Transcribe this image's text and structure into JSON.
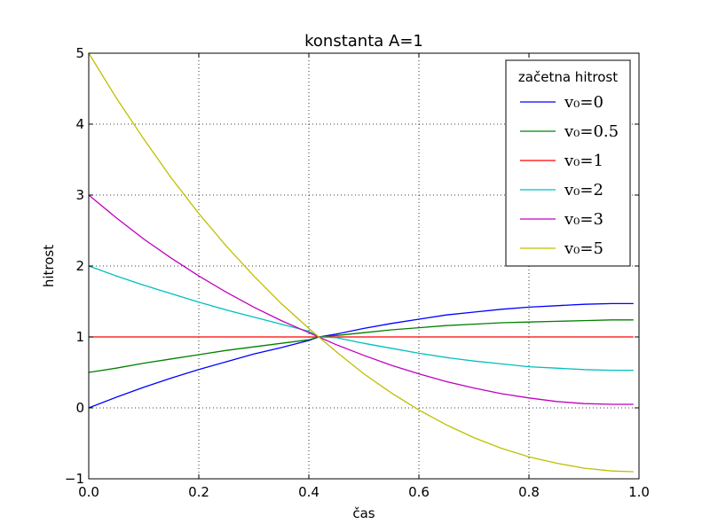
{
  "chart_data": {
    "type": "line",
    "title": "konstanta A=1",
    "xlabel": "čas",
    "ylabel": "hitrost",
    "xlim": [
      0.0,
      1.0
    ],
    "ylim": [
      -1,
      5
    ],
    "xticks": [
      "0.0",
      "0.2",
      "0.4",
      "0.6",
      "0.8",
      "1.0"
    ],
    "yticks": [
      "−1",
      "0",
      "1",
      "2",
      "3",
      "4",
      "5"
    ],
    "grid": true,
    "legend": {
      "title": "začetna hitrost",
      "position": "upper right"
    },
    "x": [
      0.0,
      0.05,
      0.1,
      0.15,
      0.2,
      0.25,
      0.3,
      0.35,
      0.4,
      0.418,
      0.45,
      0.5,
      0.55,
      0.6,
      0.65,
      0.7,
      0.75,
      0.8,
      0.85,
      0.9,
      0.95,
      0.99
    ],
    "series": [
      {
        "name": "v₀=0",
        "color": "#0000ff",
        "values": [
          0.0,
          0.15,
          0.29,
          0.42,
          0.54,
          0.65,
          0.76,
          0.85,
          0.95,
          1.0,
          1.04,
          1.12,
          1.19,
          1.25,
          1.31,
          1.35,
          1.39,
          1.42,
          1.44,
          1.46,
          1.47,
          1.47
        ]
      },
      {
        "name": "v₀=0.5",
        "color": "#008000",
        "values": [
          0.5,
          0.56,
          0.63,
          0.69,
          0.75,
          0.81,
          0.86,
          0.91,
          0.96,
          1.0,
          1.02,
          1.06,
          1.1,
          1.13,
          1.16,
          1.18,
          1.2,
          1.21,
          1.22,
          1.23,
          1.24,
          1.24
        ]
      },
      {
        "name": "v₀=1",
        "color": "#ff0000",
        "values": [
          1.0,
          1.0,
          1.0,
          1.0,
          1.0,
          1.0,
          1.0,
          1.0,
          1.0,
          1.0,
          1.0,
          1.0,
          1.0,
          1.0,
          1.0,
          1.0,
          1.0,
          1.0,
          1.0,
          1.0,
          1.0,
          1.0
        ]
      },
      {
        "name": "v₀=2",
        "color": "#00bfbf",
        "values": [
          2.0,
          1.86,
          1.73,
          1.61,
          1.49,
          1.38,
          1.28,
          1.18,
          1.08,
          1.0,
          0.99,
          0.91,
          0.84,
          0.77,
          0.71,
          0.66,
          0.62,
          0.58,
          0.56,
          0.54,
          0.53,
          0.53
        ]
      },
      {
        "name": "v₀=3",
        "color": "#bf00bf",
        "values": [
          3.0,
          2.68,
          2.38,
          2.11,
          1.86,
          1.63,
          1.42,
          1.23,
          1.06,
          1.0,
          0.89,
          0.74,
          0.6,
          0.48,
          0.37,
          0.28,
          0.2,
          0.14,
          0.09,
          0.06,
          0.05,
          0.05
        ]
      },
      {
        "name": "v₀=5",
        "color": "#bfbf00",
        "values": [
          5.0,
          4.37,
          3.79,
          3.24,
          2.74,
          2.28,
          1.86,
          1.47,
          1.12,
          1.0,
          0.79,
          0.48,
          0.21,
          -0.03,
          -0.24,
          -0.42,
          -0.57,
          -0.69,
          -0.78,
          -0.85,
          -0.89,
          -0.9
        ]
      }
    ]
  }
}
